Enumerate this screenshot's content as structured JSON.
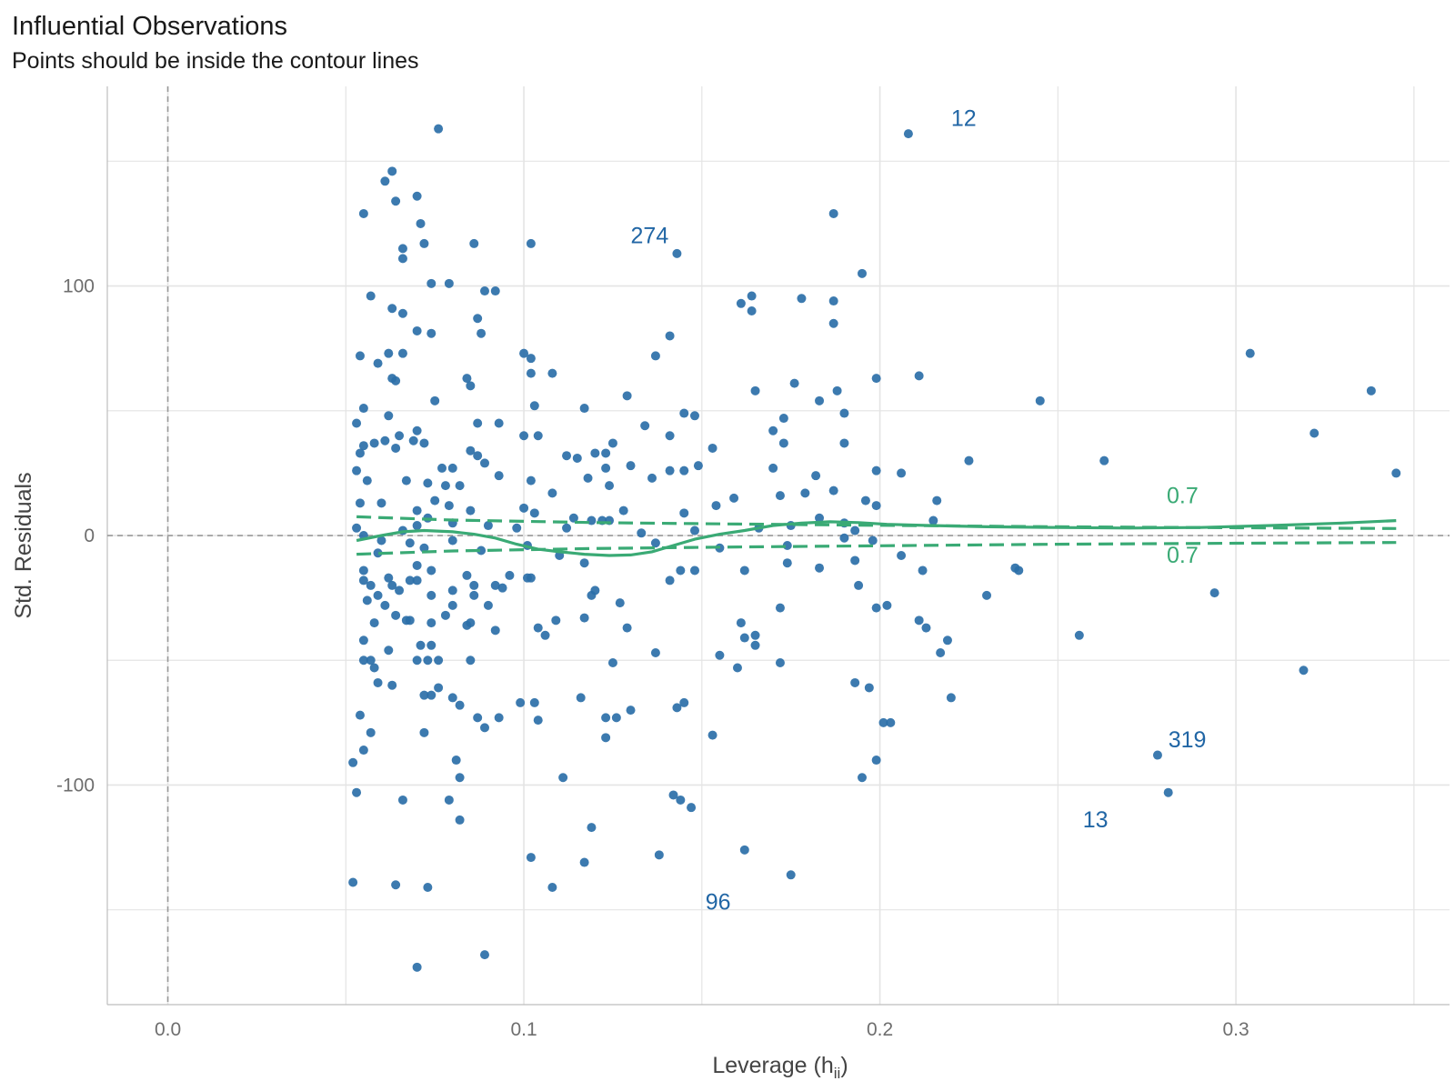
{
  "chart_data": {
    "type": "scatter",
    "title": "Influential Observations",
    "subtitle": "Points should be inside the contour lines",
    "xlabel": "Leverage (h",
    "xlabel_sub": "ii",
    "xlabel_close": ")",
    "ylabel": "Std. Residuals",
    "xlim": [
      -0.017,
      0.36
    ],
    "ylim": [
      -188,
      180
    ],
    "x_ticks": [
      {
        "value": 0.0,
        "label": "0.0"
      },
      {
        "value": 0.1,
        "label": "0.1"
      },
      {
        "value": 0.2,
        "label": "0.2"
      },
      {
        "value": 0.3,
        "label": "0.3"
      }
    ],
    "y_ticks": [
      {
        "value": 100,
        "label": "100"
      },
      {
        "value": 0,
        "label": "0"
      },
      {
        "value": -100,
        "label": "-100"
      }
    ],
    "x_minor": [
      0.05,
      0.15,
      0.25,
      0.35
    ],
    "y_minor": [
      150,
      50,
      -50,
      -150
    ],
    "grid": true,
    "colors": {
      "points": "#2b6fa8",
      "labels": "#2166a5",
      "contour": "#3aaa75",
      "ref_line": "#9a9a9a",
      "grid": "#e4e4e4"
    },
    "reference_lines": {
      "x": 0,
      "y": 0
    },
    "points": [
      [
        0.076,
        163
      ],
      [
        0.208,
        161
      ],
      [
        0.063,
        146
      ],
      [
        0.061,
        142
      ],
      [
        0.07,
        136
      ],
      [
        0.064,
        134
      ],
      [
        0.055,
        129
      ],
      [
        0.187,
        129
      ],
      [
        0.071,
        125
      ],
      [
        0.066,
        115
      ],
      [
        0.072,
        117
      ],
      [
        0.086,
        117
      ],
      [
        0.102,
        117
      ],
      [
        0.066,
        111
      ],
      [
        0.143,
        113
      ],
      [
        0.195,
        105
      ],
      [
        0.074,
        101
      ],
      [
        0.079,
        101
      ],
      [
        0.089,
        98
      ],
      [
        0.092,
        98
      ],
      [
        0.057,
        96
      ],
      [
        0.164,
        96
      ],
      [
        0.178,
        95
      ],
      [
        0.187,
        94
      ],
      [
        0.161,
        93
      ],
      [
        0.063,
        91
      ],
      [
        0.164,
        90
      ],
      [
        0.066,
        89
      ],
      [
        0.087,
        87
      ],
      [
        0.187,
        85
      ],
      [
        0.07,
        82
      ],
      [
        0.074,
        81
      ],
      [
        0.088,
        81
      ],
      [
        0.141,
        80
      ],
      [
        0.054,
        72
      ],
      [
        0.062,
        73
      ],
      [
        0.066,
        73
      ],
      [
        0.1,
        73
      ],
      [
        0.102,
        71
      ],
      [
        0.137,
        72
      ],
      [
        0.304,
        73
      ],
      [
        0.059,
        69
      ],
      [
        0.063,
        63
      ],
      [
        0.064,
        62
      ],
      [
        0.084,
        63
      ],
      [
        0.085,
        60
      ],
      [
        0.102,
        65
      ],
      [
        0.108,
        65
      ],
      [
        0.199,
        63
      ],
      [
        0.211,
        64
      ],
      [
        0.176,
        61
      ],
      [
        0.165,
        58
      ],
      [
        0.188,
        58
      ],
      [
        0.129,
        56
      ],
      [
        0.183,
        54
      ],
      [
        0.245,
        54
      ],
      [
        0.338,
        58
      ],
      [
        0.075,
        54
      ],
      [
        0.055,
        51
      ],
      [
        0.103,
        52
      ],
      [
        0.117,
        51
      ],
      [
        0.062,
        48
      ],
      [
        0.145,
        49
      ],
      [
        0.148,
        48
      ],
      [
        0.173,
        47
      ],
      [
        0.19,
        49
      ],
      [
        0.087,
        45
      ],
      [
        0.093,
        45
      ],
      [
        0.053,
        45
      ],
      [
        0.134,
        44
      ],
      [
        0.07,
        42
      ],
      [
        0.17,
        42
      ],
      [
        0.322,
        41
      ],
      [
        0.065,
        40
      ],
      [
        0.1,
        40
      ],
      [
        0.104,
        40
      ],
      [
        0.141,
        40
      ],
      [
        0.058,
        37
      ],
      [
        0.061,
        38
      ],
      [
        0.072,
        37
      ],
      [
        0.055,
        36
      ],
      [
        0.069,
        38
      ],
      [
        0.087,
        32
      ],
      [
        0.085,
        34
      ],
      [
        0.125,
        37
      ],
      [
        0.123,
        33
      ],
      [
        0.12,
        33
      ],
      [
        0.115,
        31
      ],
      [
        0.173,
        37
      ],
      [
        0.19,
        37
      ],
      [
        0.153,
        35
      ],
      [
        0.054,
        33
      ],
      [
        0.064,
        35
      ],
      [
        0.08,
        27
      ],
      [
        0.077,
        27
      ],
      [
        0.089,
        29
      ],
      [
        0.112,
        32
      ],
      [
        0.118,
        23
      ],
      [
        0.123,
        27
      ],
      [
        0.13,
        28
      ],
      [
        0.149,
        28
      ],
      [
        0.145,
        26
      ],
      [
        0.17,
        27
      ],
      [
        0.182,
        24
      ],
      [
        0.199,
        26
      ],
      [
        0.206,
        25
      ],
      [
        0.225,
        30
      ],
      [
        0.263,
        30
      ],
      [
        0.345,
        25
      ],
      [
        0.053,
        26
      ],
      [
        0.056,
        22
      ],
      [
        0.067,
        22
      ],
      [
        0.073,
        21
      ],
      [
        0.078,
        20
      ],
      [
        0.082,
        20
      ],
      [
        0.093,
        24
      ],
      [
        0.102,
        22
      ],
      [
        0.108,
        17
      ],
      [
        0.124,
        20
      ],
      [
        0.136,
        23
      ],
      [
        0.141,
        26
      ],
      [
        0.159,
        15
      ],
      [
        0.172,
        16
      ],
      [
        0.179,
        17
      ],
      [
        0.187,
        18
      ],
      [
        0.196,
        14
      ],
      [
        0.199,
        12
      ],
      [
        0.06,
        13
      ],
      [
        0.054,
        13
      ],
      [
        0.07,
        10
      ],
      [
        0.075,
        14
      ],
      [
        0.079,
        12
      ],
      [
        0.085,
        10
      ],
      [
        0.1,
        11
      ],
      [
        0.103,
        9
      ],
      [
        0.114,
        7
      ],
      [
        0.124,
        6
      ],
      [
        0.128,
        10
      ],
      [
        0.145,
        9
      ],
      [
        0.154,
        12
      ],
      [
        0.183,
        7
      ],
      [
        0.215,
        6
      ],
      [
        0.216,
        14
      ],
      [
        0.053,
        3
      ],
      [
        0.066,
        2
      ],
      [
        0.07,
        4
      ],
      [
        0.073,
        7
      ],
      [
        0.08,
        5
      ],
      [
        0.09,
        4
      ],
      [
        0.098,
        3
      ],
      [
        0.112,
        3
      ],
      [
        0.119,
        6
      ],
      [
        0.122,
        6
      ],
      [
        0.133,
        1
      ],
      [
        0.148,
        2
      ],
      [
        0.166,
        3
      ],
      [
        0.175,
        4
      ],
      [
        0.19,
        5
      ],
      [
        0.193,
        2
      ],
      [
        0.055,
        0
      ],
      [
        0.06,
        -2
      ],
      [
        0.068,
        -3
      ],
      [
        0.072,
        -5
      ],
      [
        0.08,
        -2
      ],
      [
        0.088,
        -6
      ],
      [
        0.101,
        -4
      ],
      [
        0.11,
        -8
      ],
      [
        0.137,
        -3
      ],
      [
        0.155,
        -5
      ],
      [
        0.174,
        -4
      ],
      [
        0.19,
        -1
      ],
      [
        0.198,
        -2
      ],
      [
        0.206,
        -8
      ],
      [
        0.059,
        -7
      ],
      [
        0.055,
        -14
      ],
      [
        0.062,
        -17
      ],
      [
        0.07,
        -12
      ],
      [
        0.074,
        -14
      ],
      [
        0.084,
        -16
      ],
      [
        0.096,
        -16
      ],
      [
        0.102,
        -17
      ],
      [
        0.117,
        -11
      ],
      [
        0.141,
        -18
      ],
      [
        0.144,
        -14
      ],
      [
        0.148,
        -14
      ],
      [
        0.162,
        -14
      ],
      [
        0.174,
        -11
      ],
      [
        0.183,
        -13
      ],
      [
        0.193,
        -10
      ],
      [
        0.212,
        -14
      ],
      [
        0.238,
        -13
      ],
      [
        0.239,
        -14
      ],
      [
        0.055,
        -18
      ],
      [
        0.057,
        -20
      ],
      [
        0.063,
        -20
      ],
      [
        0.068,
        -18
      ],
      [
        0.074,
        -24
      ],
      [
        0.08,
        -22
      ],
      [
        0.086,
        -20
      ],
      [
        0.092,
        -20
      ],
      [
        0.094,
        -21
      ],
      [
        0.056,
        -26
      ],
      [
        0.059,
        -24
      ],
      [
        0.065,
        -22
      ],
      [
        0.07,
        -18
      ],
      [
        0.08,
        -28
      ],
      [
        0.086,
        -24
      ],
      [
        0.09,
        -28
      ],
      [
        0.101,
        -17
      ],
      [
        0.119,
        -24
      ],
      [
        0.12,
        -22
      ],
      [
        0.127,
        -27
      ],
      [
        0.194,
        -20
      ],
      [
        0.199,
        -29
      ],
      [
        0.202,
        -28
      ],
      [
        0.23,
        -24
      ],
      [
        0.294,
        -23
      ],
      [
        0.061,
        -28
      ],
      [
        0.064,
        -32
      ],
      [
        0.067,
        -34
      ],
      [
        0.078,
        -32
      ],
      [
        0.085,
        -35
      ],
      [
        0.109,
        -34
      ],
      [
        0.117,
        -33
      ],
      [
        0.058,
        -35
      ],
      [
        0.068,
        -34
      ],
      [
        0.074,
        -35
      ],
      [
        0.084,
        -36
      ],
      [
        0.092,
        -38
      ],
      [
        0.104,
        -37
      ],
      [
        0.106,
        -40
      ],
      [
        0.129,
        -37
      ],
      [
        0.161,
        -35
      ],
      [
        0.165,
        -40
      ],
      [
        0.172,
        -29
      ],
      [
        0.211,
        -34
      ],
      [
        0.213,
        -37
      ],
      [
        0.219,
        -42
      ],
      [
        0.256,
        -40
      ],
      [
        0.055,
        -42
      ],
      [
        0.071,
        -44
      ],
      [
        0.074,
        -44
      ],
      [
        0.162,
        -41
      ],
      [
        0.165,
        -44
      ],
      [
        0.217,
        -47
      ],
      [
        0.055,
        -50
      ],
      [
        0.057,
        -50
      ],
      [
        0.062,
        -46
      ],
      [
        0.07,
        -50
      ],
      [
        0.073,
        -50
      ],
      [
        0.076,
        -50
      ],
      [
        0.085,
        -50
      ],
      [
        0.125,
        -51
      ],
      [
        0.137,
        -47
      ],
      [
        0.155,
        -48
      ],
      [
        0.16,
        -53
      ],
      [
        0.172,
        -51
      ],
      [
        0.319,
        -54
      ],
      [
        0.058,
        -53
      ],
      [
        0.059,
        -59
      ],
      [
        0.063,
        -60
      ],
      [
        0.076,
        -61
      ],
      [
        0.072,
        -64
      ],
      [
        0.074,
        -64
      ],
      [
        0.08,
        -65
      ],
      [
        0.082,
        -68
      ],
      [
        0.099,
        -67
      ],
      [
        0.103,
        -67
      ],
      [
        0.116,
        -65
      ],
      [
        0.143,
        -69
      ],
      [
        0.145,
        -67
      ],
      [
        0.193,
        -59
      ],
      [
        0.197,
        -61
      ],
      [
        0.22,
        -65
      ],
      [
        0.054,
        -72
      ],
      [
        0.057,
        -79
      ],
      [
        0.072,
        -79
      ],
      [
        0.087,
        -73
      ],
      [
        0.089,
        -77
      ],
      [
        0.093,
        -73
      ],
      [
        0.104,
        -74
      ],
      [
        0.123,
        -73
      ],
      [
        0.126,
        -73
      ],
      [
        0.13,
        -70
      ],
      [
        0.123,
        -81
      ],
      [
        0.153,
        -80
      ],
      [
        0.201,
        -75
      ],
      [
        0.203,
        -75
      ],
      [
        0.278,
        -88
      ],
      [
        0.052,
        -91
      ],
      [
        0.055,
        -86
      ],
      [
        0.081,
        -90
      ],
      [
        0.082,
        -97
      ],
      [
        0.111,
        -97
      ],
      [
        0.195,
        -97
      ],
      [
        0.199,
        -90
      ],
      [
        0.053,
        -103
      ],
      [
        0.066,
        -106
      ],
      [
        0.079,
        -106
      ],
      [
        0.082,
        -114
      ],
      [
        0.142,
        -104
      ],
      [
        0.144,
        -106
      ],
      [
        0.147,
        -109
      ],
      [
        0.281,
        -103
      ],
      [
        0.119,
        -117
      ],
      [
        0.102,
        -129
      ],
      [
        0.117,
        -131
      ],
      [
        0.138,
        -128
      ],
      [
        0.162,
        -126
      ],
      [
        0.052,
        -139
      ],
      [
        0.064,
        -140
      ],
      [
        0.073,
        -141
      ],
      [
        0.108,
        -141
      ],
      [
        0.175,
        -136
      ],
      [
        0.07,
        -173
      ],
      [
        0.089,
        -168
      ]
    ],
    "labeled_points": [
      {
        "label": "12",
        "x": 0.208,
        "y": 161,
        "dx": 0.012,
        "dy": 6
      },
      {
        "label": "274",
        "x": 0.187,
        "y": 129,
        "dx": -0.057,
        "dy": -9
      },
      {
        "label": "319",
        "x": 0.278,
        "y": -88,
        "dx": 0.003,
        "dy": 6
      },
      {
        "label": "13",
        "x": 0.281,
        "y": -103,
        "dx": -0.024,
        "dy": -11
      },
      {
        "label": "96",
        "x": 0.175,
        "y": -136,
        "dx": -0.024,
        "dy": -11
      }
    ],
    "lowess_line": [
      [
        0.053,
        -2
      ],
      [
        0.06,
        0
      ],
      [
        0.066,
        1.5
      ],
      [
        0.072,
        2
      ],
      [
        0.08,
        1.5
      ],
      [
        0.086,
        0.5
      ],
      [
        0.092,
        -1
      ],
      [
        0.098,
        -3.5
      ],
      [
        0.104,
        -5.5
      ],
      [
        0.11,
        -6.5
      ],
      [
        0.117,
        -7.5
      ],
      [
        0.124,
        -8
      ],
      [
        0.13,
        -7.8
      ],
      [
        0.136,
        -6.5
      ],
      [
        0.142,
        -4
      ],
      [
        0.148,
        -1.5
      ],
      [
        0.155,
        0.5
      ],
      [
        0.162,
        2
      ],
      [
        0.17,
        4
      ],
      [
        0.178,
        5
      ],
      [
        0.186,
        5.5
      ],
      [
        0.194,
        5.2
      ],
      [
        0.202,
        4.5
      ],
      [
        0.214,
        4
      ],
      [
        0.23,
        3.5
      ],
      [
        0.25,
        3.2
      ],
      [
        0.27,
        3
      ],
      [
        0.29,
        3.2
      ],
      [
        0.31,
        4
      ],
      [
        0.33,
        5
      ],
      [
        0.345,
        6
      ]
    ],
    "contour_upper": [
      [
        0.053,
        7.5
      ],
      [
        0.08,
        6.2
      ],
      [
        0.12,
        5.2
      ],
      [
        0.16,
        4.6
      ],
      [
        0.2,
        4.1
      ],
      [
        0.25,
        3.5
      ],
      [
        0.3,
        3.1
      ],
      [
        0.345,
        2.8
      ]
    ],
    "contour_lower": [
      [
        0.053,
        -7.5
      ],
      [
        0.08,
        -6.2
      ],
      [
        0.12,
        -5.2
      ],
      [
        0.16,
        -4.6
      ],
      [
        0.2,
        -4.1
      ],
      [
        0.25,
        -3.5
      ],
      [
        0.3,
        -3.1
      ],
      [
        0.345,
        -2.8
      ]
    ],
    "contour_labels": [
      {
        "label": "0.7",
        "x": 0.285,
        "y": 13
      },
      {
        "label": "0.7",
        "x": 0.285,
        "y": -11
      }
    ]
  }
}
